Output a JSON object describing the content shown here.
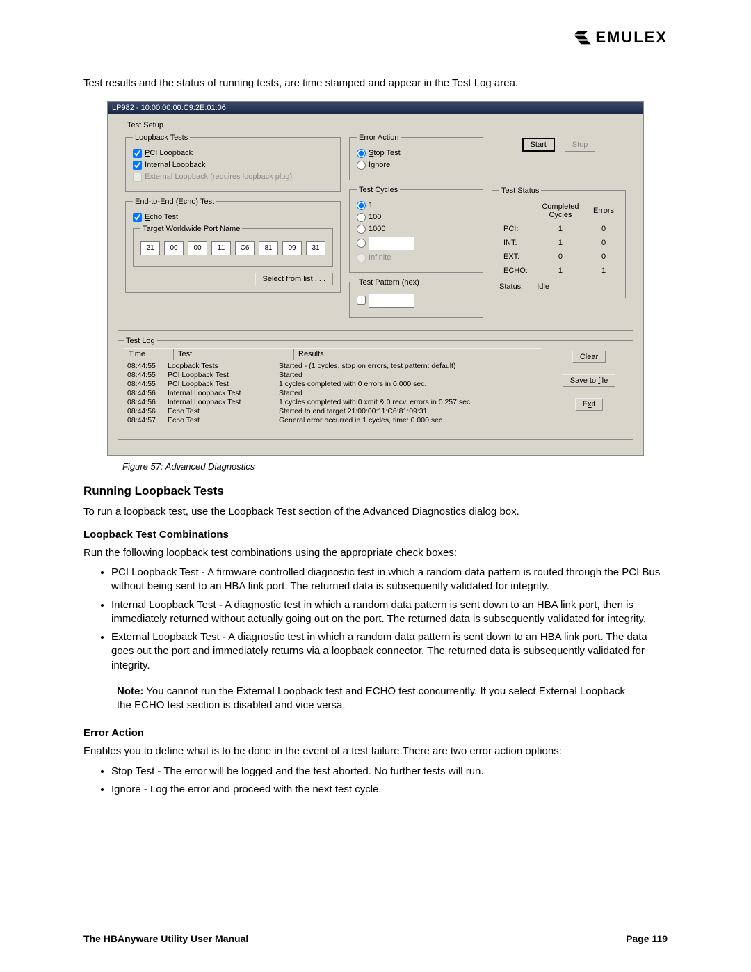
{
  "brand": "EMULEX",
  "intro": "Test results and the status of running tests, are time stamped and appear in the Test Log area.",
  "dlg": {
    "title": "LP982 - 10:00:00:00:C9:2E:01:06",
    "setup": {
      "legend": "Test Setup"
    },
    "loop": {
      "legend": "Loopback Tests",
      "pci": {
        "label": "PCI Loopback",
        "checked": true,
        "ul": "P"
      },
      "int": {
        "label": "Internal Loopback",
        "checked": true,
        "ul": "I"
      },
      "ext": {
        "label": "External Loopback (requires loopback plug)",
        "checked": false,
        "disabled": true,
        "ul": "E"
      }
    },
    "echo": {
      "legend": "End-to-End (Echo) Test",
      "cb": {
        "label": "Echo Test",
        "checked": true,
        "ul": "E"
      },
      "tgt": {
        "legend": "Target Worldwide Port Name",
        "vals": [
          "21",
          "00",
          "00",
          "11",
          "C6",
          "81",
          "09",
          "31"
        ]
      },
      "btn": "Select from list . . ."
    },
    "err": {
      "legend": "Error Action",
      "stop": "Stop Test",
      "ignore": "Ignore",
      "sel": "stop"
    },
    "cyc": {
      "legend": "Test Cycles",
      "opts": [
        "1",
        "100",
        "1000"
      ],
      "custom": "",
      "inf": "Infinite",
      "sel": "1"
    },
    "pat": {
      "legend": "Test Pattern (hex)",
      "checked": false,
      "val": ""
    },
    "ctrl": {
      "start": "Start",
      "stop": "Stop"
    },
    "stat": {
      "legend": "Test Status",
      "h1": "Completed Cycles",
      "h2": "Errors",
      "rows": [
        [
          "PCI:",
          "1",
          "0"
        ],
        [
          "INT:",
          "1",
          "0"
        ],
        [
          "EXT:",
          "0",
          "0"
        ],
        [
          "ECHO:",
          "1",
          "1"
        ]
      ],
      "status_lbl": "Status:",
      "status_val": "Idle"
    },
    "log": {
      "legend": "Test Log",
      "h": [
        "Time",
        "Test",
        "Results"
      ],
      "rows": [
        [
          "08:44:55",
          "Loopback Tests",
          "Started - (1 cycles, stop on errors, test pattern: default)"
        ],
        [
          "08:44:55",
          "PCI Loopback Test",
          "Started"
        ],
        [
          "08:44:55",
          "PCI Loopback Test",
          "1 cycles completed with 0 errors in 0.000 sec."
        ],
        [
          "08:44:56",
          "Internal Loopback Test",
          "Started"
        ],
        [
          "08:44:56",
          "Internal Loopback Test",
          "1 cycles completed with 0 xmit & 0 recv. errors in 0.257 sec."
        ],
        [
          "08:44:56",
          "Echo Test",
          "Started to end target 21:00:00:11:C6:81:09:31."
        ],
        [
          "08:44:57",
          "Echo Test",
          "General error occurred in 1 cycles, time: 0.000 sec."
        ]
      ],
      "clear": "Clear",
      "save": "Save to file",
      "exit": "Exit"
    }
  },
  "caption": "Figure 57: Advanced Diagnostics",
  "s1": "Running Loopback Tests",
  "p1": "To run a loopback test, use the Loopback Test section of the Advanced Diagnostics dialog box.",
  "s2": "Loopback Test Combinations",
  "p2": "Run the following loopback test combinations using the appropriate check boxes:",
  "li": [
    "PCI Loopback Test - A firmware controlled diagnostic test in which a random data pattern is routed through the PCI Bus without being sent to an HBA link port. The returned data is subsequently validated for integrity.",
    "Internal Loopback Test - A diagnostic test in which a random data pattern is sent down to an HBA link port, then is immediately returned without actually going out on the port. The returned data is subsequently validated for integrity.",
    "External Loopback Test - A diagnostic test in which a random data pattern is sent down to an HBA link port. The data goes out the port and immediately returns via a loopback connector. The returned data is subsequently validated for integrity."
  ],
  "note_lbl": "Note:",
  "note": " You cannot run the External Loopback test and ECHO test concurrently. If you select External Loopback the ECHO test section is disabled and vice versa.",
  "s3": "Error Action",
  "p3": "Enables you to define what is to be done in the event of a test failure.There are two error action options:",
  "li2": [
    "Stop Test - The error will be logged and the test aborted. No further tests will run.",
    "Ignore - Log the error and proceed with the next test cycle."
  ],
  "foot_l": "The HBAnyware Utility User Manual",
  "foot_r": "Page 119"
}
